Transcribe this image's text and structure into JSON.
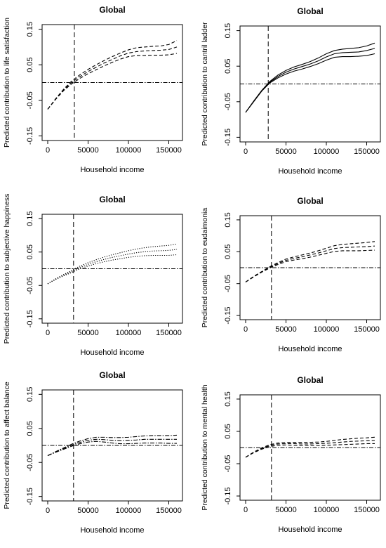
{
  "chart_data": [
    {
      "type": "line",
      "title": "Global",
      "xlabel": "Household income",
      "ylabel": "Predicted contribution to life satisfaction",
      "xlim": [
        0,
        160000
      ],
      "ylim": [
        -0.15,
        0.15
      ],
      "xticks": [
        "0",
        "50000",
        "100000",
        "150000"
      ],
      "yticks": [
        "-0.15",
        "-0.05",
        "0.05",
        "0.15"
      ],
      "vline": 33000,
      "hline": 0,
      "series": [
        {
          "style": "dashed",
          "x": [
            0,
            10000,
            20000,
            30000,
            40000,
            50000,
            60000,
            70000,
            80000,
            90000,
            100000,
            110000,
            120000,
            130000,
            140000,
            150000,
            160000
          ],
          "y": [
            -0.075,
            -0.045,
            -0.018,
            0.005,
            0.022,
            0.037,
            0.05,
            0.062,
            0.073,
            0.083,
            0.092,
            0.098,
            0.1,
            0.102,
            0.103,
            0.107,
            0.118
          ]
        },
        {
          "style": "dashed",
          "x": [
            0,
            10000,
            20000,
            30000,
            40000,
            50000,
            60000,
            70000,
            80000,
            90000,
            100000,
            110000,
            120000,
            130000,
            140000,
            150000,
            160000
          ],
          "y": [
            -0.075,
            -0.046,
            -0.02,
            0.001,
            0.017,
            0.031,
            0.043,
            0.055,
            0.065,
            0.075,
            0.083,
            0.087,
            0.089,
            0.09,
            0.091,
            0.093,
            0.1
          ]
        },
        {
          "style": "dashed",
          "x": [
            0,
            10000,
            20000,
            30000,
            40000,
            50000,
            60000,
            70000,
            80000,
            90000,
            100000,
            110000,
            120000,
            130000,
            140000,
            150000,
            160000
          ],
          "y": [
            -0.075,
            -0.047,
            -0.022,
            -0.003,
            0.012,
            0.025,
            0.036,
            0.047,
            0.057,
            0.066,
            0.073,
            0.076,
            0.076,
            0.077,
            0.077,
            0.078,
            0.082
          ]
        }
      ]
    },
    {
      "type": "line",
      "title": "Global",
      "xlabel": "Household income",
      "ylabel": "Predicted contribution to cantril ladder",
      "xlim": [
        0,
        160000
      ],
      "ylim": [
        -0.15,
        0.15
      ],
      "xticks": [
        "0",
        "50000",
        "100000",
        "150000"
      ],
      "yticks": [
        "-0.15",
        "-0.05",
        "0.05",
        "0.15"
      ],
      "vline": 28000,
      "hline": 0,
      "series": [
        {
          "style": "solid",
          "x": [
            0,
            10000,
            20000,
            30000,
            40000,
            50000,
            60000,
            70000,
            80000,
            90000,
            100000,
            110000,
            120000,
            130000,
            140000,
            150000,
            160000
          ],
          "y": [
            -0.08,
            -0.048,
            -0.018,
            0.007,
            0.025,
            0.038,
            0.048,
            0.055,
            0.063,
            0.073,
            0.085,
            0.094,
            0.098,
            0.1,
            0.102,
            0.107,
            0.115
          ]
        },
        {
          "style": "solid",
          "x": [
            0,
            10000,
            20000,
            30000,
            40000,
            50000,
            60000,
            70000,
            80000,
            90000,
            100000,
            110000,
            120000,
            130000,
            140000,
            150000,
            160000
          ],
          "y": [
            -0.08,
            -0.049,
            -0.019,
            0.005,
            0.021,
            0.033,
            0.042,
            0.049,
            0.056,
            0.065,
            0.076,
            0.085,
            0.088,
            0.089,
            0.09,
            0.094,
            0.1
          ]
        },
        {
          "style": "solid",
          "x": [
            0,
            10000,
            20000,
            30000,
            40000,
            50000,
            60000,
            70000,
            80000,
            90000,
            100000,
            110000,
            120000,
            130000,
            140000,
            150000,
            160000
          ],
          "y": [
            -0.08,
            -0.05,
            -0.02,
            0.003,
            0.017,
            0.028,
            0.036,
            0.042,
            0.049,
            0.057,
            0.067,
            0.075,
            0.077,
            0.077,
            0.078,
            0.08,
            0.085
          ]
        }
      ]
    },
    {
      "type": "line",
      "title": "Global",
      "xlabel": "Household income",
      "ylabel": "Predicted contribution to subjective happiness",
      "xlim": [
        0,
        160000
      ],
      "ylim": [
        -0.15,
        0.15
      ],
      "xticks": [
        "0",
        "50000",
        "100000",
        "150000"
      ],
      "yticks": [
        "-0.15",
        "-0.05",
        "0.05",
        "0.15"
      ],
      "vline": 32000,
      "hline": 0,
      "series": [
        {
          "style": "dotted",
          "x": [
            0,
            10000,
            20000,
            30000,
            40000,
            50000,
            60000,
            70000,
            80000,
            90000,
            100000,
            110000,
            120000,
            130000,
            140000,
            150000,
            160000
          ],
          "y": [
            -0.045,
            -0.03,
            -0.017,
            -0.005,
            0.008,
            0.018,
            0.027,
            0.035,
            0.042,
            0.048,
            0.054,
            0.059,
            0.063,
            0.066,
            0.068,
            0.07,
            0.074
          ]
        },
        {
          "style": "dotted",
          "x": [
            0,
            10000,
            20000,
            30000,
            40000,
            50000,
            60000,
            70000,
            80000,
            90000,
            100000,
            110000,
            120000,
            130000,
            140000,
            150000,
            160000
          ],
          "y": [
            -0.045,
            -0.031,
            -0.019,
            -0.008,
            0.004,
            0.013,
            0.021,
            0.028,
            0.034,
            0.039,
            0.044,
            0.048,
            0.051,
            0.053,
            0.054,
            0.055,
            0.058
          ]
        },
        {
          "style": "dotted",
          "x": [
            0,
            10000,
            20000,
            30000,
            40000,
            50000,
            60000,
            70000,
            80000,
            90000,
            100000,
            110000,
            120000,
            130000,
            140000,
            150000,
            160000
          ],
          "y": [
            -0.045,
            -0.032,
            -0.021,
            -0.011,
            0,
            0.008,
            0.015,
            0.021,
            0.026,
            0.03,
            0.034,
            0.037,
            0.039,
            0.04,
            0.04,
            0.04,
            0.042
          ]
        }
      ]
    },
    {
      "type": "line",
      "title": "Global",
      "xlabel": "Household income",
      "ylabel": "Predicted contribution to eudaimonia",
      "xlim": [
        0,
        160000
      ],
      "ylim": [
        -0.15,
        0.15
      ],
      "xticks": [
        "0",
        "50000",
        "100000",
        "150000"
      ],
      "yticks": [
        "-0.15",
        "-0.05",
        "0.05",
        "0.15"
      ],
      "vline": 32000,
      "hline": 0,
      "series": [
        {
          "style": "dashed",
          "x": [
            0,
            10000,
            20000,
            30000,
            40000,
            50000,
            60000,
            70000,
            80000,
            90000,
            100000,
            110000,
            120000,
            130000,
            140000,
            150000,
            160000
          ],
          "y": [
            -0.045,
            -0.027,
            -0.012,
            0.003,
            0.016,
            0.027,
            0.034,
            0.04,
            0.046,
            0.053,
            0.061,
            0.069,
            0.073,
            0.075,
            0.077,
            0.079,
            0.082
          ]
        },
        {
          "style": "dashed",
          "x": [
            0,
            10000,
            20000,
            30000,
            40000,
            50000,
            60000,
            70000,
            80000,
            90000,
            100000,
            110000,
            120000,
            130000,
            140000,
            150000,
            160000
          ],
          "y": [
            -0.045,
            -0.028,
            -0.013,
            0.001,
            0.013,
            0.023,
            0.029,
            0.034,
            0.04,
            0.046,
            0.053,
            0.06,
            0.063,
            0.064,
            0.065,
            0.066,
            0.068
          ]
        },
        {
          "style": "dashed",
          "x": [
            0,
            10000,
            20000,
            30000,
            40000,
            50000,
            60000,
            70000,
            80000,
            90000,
            100000,
            110000,
            120000,
            130000,
            140000,
            150000,
            160000
          ],
          "y": [
            -0.045,
            -0.029,
            -0.014,
            -0.001,
            0.01,
            0.019,
            0.024,
            0.028,
            0.033,
            0.039,
            0.045,
            0.051,
            0.053,
            0.053,
            0.053,
            0.054,
            0.055
          ]
        }
      ]
    },
    {
      "type": "line",
      "title": "Global",
      "xlabel": "Household income",
      "ylabel": "Predicted contribution to affect balance",
      "xlim": [
        0,
        160000
      ],
      "ylim": [
        -0.15,
        0.15
      ],
      "xticks": [
        "0",
        "50000",
        "100000",
        "150000"
      ],
      "yticks": [
        "-0.15",
        "-0.05",
        "0.05",
        "0.15"
      ],
      "vline": 32000,
      "hline": 0,
      "series": [
        {
          "style": "dashdot",
          "x": [
            0,
            10000,
            20000,
            30000,
            40000,
            50000,
            60000,
            70000,
            80000,
            90000,
            100000,
            110000,
            120000,
            130000,
            140000,
            150000,
            160000
          ],
          "y": [
            -0.03,
            -0.018,
            -0.007,
            0.004,
            0.013,
            0.02,
            0.024,
            0.024,
            0.023,
            0.023,
            0.024,
            0.026,
            0.028,
            0.029,
            0.029,
            0.029,
            0.03
          ]
        },
        {
          "style": "dashdot",
          "x": [
            0,
            10000,
            20000,
            30000,
            40000,
            50000,
            60000,
            70000,
            80000,
            90000,
            100000,
            110000,
            120000,
            130000,
            140000,
            150000,
            160000
          ],
          "y": [
            -0.03,
            -0.019,
            -0.009,
            0.001,
            0.009,
            0.015,
            0.018,
            0.017,
            0.015,
            0.014,
            0.015,
            0.016,
            0.018,
            0.018,
            0.018,
            0.018,
            0.018
          ]
        },
        {
          "style": "dashdot",
          "x": [
            0,
            10000,
            20000,
            30000,
            40000,
            50000,
            60000,
            70000,
            80000,
            90000,
            100000,
            110000,
            120000,
            130000,
            140000,
            150000,
            160000
          ],
          "y": [
            -0.03,
            -0.02,
            -0.011,
            -0.002,
            0.005,
            0.01,
            0.012,
            0.01,
            0.007,
            0.005,
            0.005,
            0.006,
            0.007,
            0.007,
            0.007,
            0.006,
            0.006
          ]
        }
      ]
    },
    {
      "type": "line",
      "title": "Global",
      "xlabel": "Household income",
      "ylabel": "Predicted contribution to mental health",
      "xlim": [
        0,
        160000
      ],
      "ylim": [
        -0.15,
        0.15
      ],
      "xticks": [
        "0",
        "50000",
        "100000",
        "150000"
      ],
      "yticks": [
        "-0.15",
        "-0.05",
        "0.05",
        "0.15"
      ],
      "vline": 32000,
      "hline": 0,
      "series": [
        {
          "style": "dashed",
          "x": [
            0,
            10000,
            20000,
            30000,
            40000,
            50000,
            60000,
            70000,
            80000,
            90000,
            100000,
            110000,
            120000,
            130000,
            140000,
            150000,
            160000
          ],
          "y": [
            -0.03,
            -0.014,
            -0.001,
            0.009,
            0.014,
            0.016,
            0.016,
            0.016,
            0.016,
            0.017,
            0.019,
            0.022,
            0.025,
            0.027,
            0.029,
            0.03,
            0.032
          ]
        },
        {
          "style": "dashed",
          "x": [
            0,
            10000,
            20000,
            30000,
            40000,
            50000,
            60000,
            70000,
            80000,
            90000,
            100000,
            110000,
            120000,
            130000,
            140000,
            150000,
            160000
          ],
          "y": [
            -0.03,
            -0.015,
            -0.003,
            0.006,
            0.011,
            0.012,
            0.012,
            0.011,
            0.011,
            0.012,
            0.013,
            0.015,
            0.017,
            0.019,
            0.02,
            0.021,
            0.022
          ]
        },
        {
          "style": "dashed",
          "x": [
            0,
            10000,
            20000,
            30000,
            40000,
            50000,
            60000,
            70000,
            80000,
            90000,
            100000,
            110000,
            120000,
            130000,
            140000,
            150000,
            160000
          ],
          "y": [
            -0.03,
            -0.016,
            -0.005,
            0.003,
            0.007,
            0.008,
            0.007,
            0.006,
            0.006,
            0.006,
            0.007,
            0.008,
            0.009,
            0.01,
            0.011,
            0.012,
            0.012
          ]
        }
      ]
    }
  ]
}
